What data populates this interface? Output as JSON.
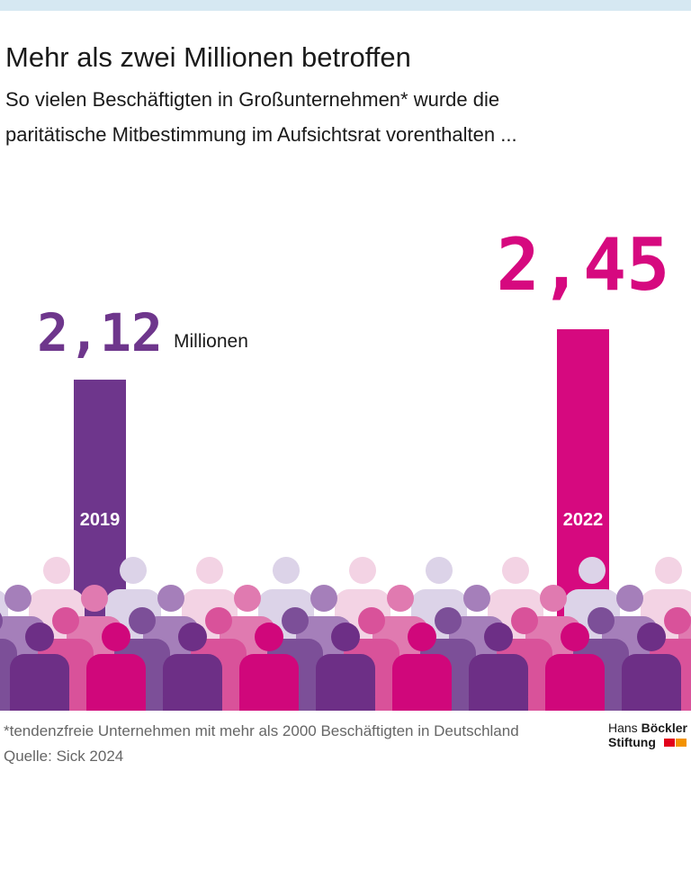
{
  "chart_data": {
    "type": "bar",
    "title": "Mehr als zwei Millionen betroffen",
    "subtitle": [
      "So vielen Beschäftigten in Großunternehmen* wurde die",
      "paritätische Mitbestimmung im Aufsichtsrat vorenthalten ..."
    ],
    "unit_label": "Millionen",
    "categories": [
      "2019",
      "2022"
    ],
    "values": [
      2.12,
      2.45
    ],
    "value_labels": [
      "2,12",
      "2,45"
    ],
    "colors": [
      "#6e368c",
      "#d6097f"
    ]
  },
  "footer": {
    "note": "*tendenzfreie Unternehmen mit mehr als 2000 Beschäftigten in Deutschland",
    "source": "Quelle: Sick 2024",
    "logo": {
      "first": "Hans",
      "second": "Böckler",
      "third": "Stiftung"
    }
  }
}
